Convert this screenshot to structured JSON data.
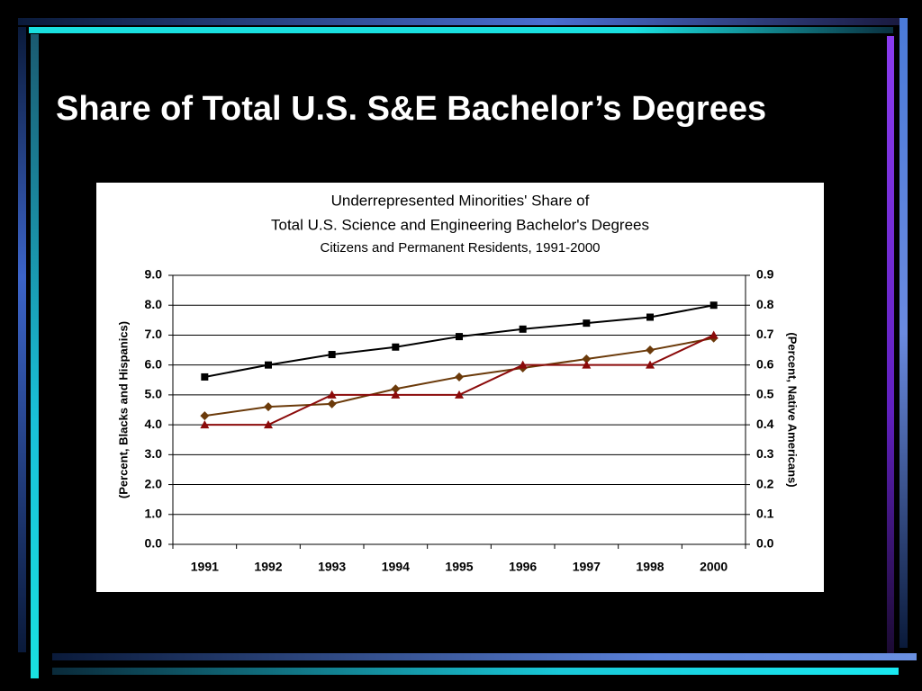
{
  "slide": {
    "title": "Share of Total U.S. S&E Bachelor’s Degrees"
  },
  "chart_data": {
    "type": "line",
    "title": [
      "Underrepresented Minorities' Share of",
      "Total U.S. Science and Engineering Bachelor's Degrees"
    ],
    "subtitle": "Citizens and Permanent Residents, 1991-2000",
    "y_label": "(Percent, Blacks and Hispanics)",
    "y2_label": "(Percent, Native Americans)",
    "categories": [
      "1991",
      "1992",
      "1993",
      "1994",
      "1995",
      "1996",
      "1997",
      "1998",
      "2000"
    ],
    "series": [
      {
        "color": "#000000",
        "marker": "square",
        "values": [
          5.6,
          6.0,
          6.35,
          6.6,
          6.95,
          7.2,
          7.4,
          7.6,
          8.0
        ]
      },
      {
        "color": "#6b3a0a",
        "marker": "diamond",
        "values": [
          4.3,
          4.6,
          4.7,
          5.2,
          5.6,
          5.9,
          6.2,
          6.5,
          6.9
        ]
      },
      {
        "color": "#8b0a0a",
        "marker": "triangle",
        "axis": "y2",
        "values": [
          0.4,
          0.4,
          0.5,
          0.5,
          0.5,
          0.6,
          0.6,
          0.6,
          0.7
        ]
      }
    ],
    "ylim": [
      0,
      9
    ],
    "yticks": [
      {
        "value": 0,
        "label": "0.0"
      },
      {
        "value": 1,
        "label": "1.0"
      },
      {
        "value": 2,
        "label": "2.0"
      },
      {
        "value": 3,
        "label": "3.0"
      },
      {
        "value": 4,
        "label": "4.0"
      },
      {
        "value": 5,
        "label": "5.0"
      },
      {
        "value": 6,
        "label": "6.0"
      },
      {
        "value": 7,
        "label": "7.0"
      },
      {
        "value": 8,
        "label": "8.0"
      },
      {
        "value": 9,
        "label": "9.0"
      }
    ],
    "y2lim": [
      0,
      0.9
    ],
    "y2ticks": [
      {
        "value": 0,
        "label": "0.0"
      },
      0.1,
      0.2,
      0.3,
      0.4,
      0.5,
      0.6,
      0.7,
      0.8,
      0.9
    ],
    "grid": true
  }
}
